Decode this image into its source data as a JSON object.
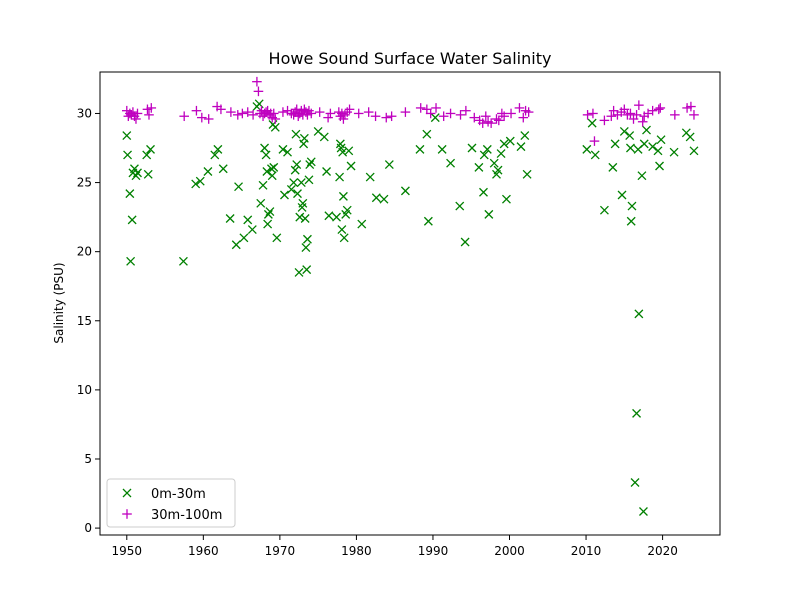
{
  "chart_data": {
    "type": "scatter",
    "title": "Howe Sound Surface Water Salinity",
    "xlabel": "",
    "ylabel": "Salinity (PSU)",
    "xlim": [
      1946.5,
      2027.5
    ],
    "ylim": [
      -0.5,
      33
    ],
    "xticks": [
      1950,
      1960,
      1970,
      1980,
      1990,
      2000,
      2010,
      2020
    ],
    "yticks": [
      0,
      5,
      10,
      15,
      20,
      25,
      30
    ],
    "grid": false,
    "legend_position": "lower-left",
    "series": [
      {
        "name": "0m-30m",
        "marker": "x",
        "color": "#008000",
        "points": [
          [
            1950.0,
            28.4
          ],
          [
            1950.1,
            27.0
          ],
          [
            1950.4,
            24.2
          ],
          [
            1950.5,
            19.3
          ],
          [
            1950.7,
            22.3
          ],
          [
            1950.8,
            25.7
          ],
          [
            1951.0,
            26.0
          ],
          [
            1951.2,
            25.5
          ],
          [
            1951.4,
            25.7
          ],
          [
            1952.6,
            27.0
          ],
          [
            1952.8,
            25.6
          ],
          [
            1953.1,
            27.4
          ],
          [
            1957.4,
            19.3
          ],
          [
            1959.0,
            24.9
          ],
          [
            1959.6,
            25.1
          ],
          [
            1960.6,
            25.8
          ],
          [
            1961.5,
            27.0
          ],
          [
            1961.9,
            27.4
          ],
          [
            1962.6,
            26.0
          ],
          [
            1963.5,
            22.4
          ],
          [
            1964.3,
            20.5
          ],
          [
            1964.6,
            24.7
          ],
          [
            1965.3,
            21.0
          ],
          [
            1965.8,
            22.3
          ],
          [
            1966.4,
            21.6
          ],
          [
            1967.0,
            30.5
          ],
          [
            1967.3,
            30.7
          ],
          [
            1967.5,
            23.5
          ],
          [
            1967.8,
            24.8
          ],
          [
            1968.0,
            27.5
          ],
          [
            1968.2,
            27.0
          ],
          [
            1968.3,
            25.8
          ],
          [
            1968.4,
            22.0
          ],
          [
            1968.5,
            22.7
          ],
          [
            1968.7,
            22.9
          ],
          [
            1968.9,
            26.0
          ],
          [
            1969.0,
            25.5
          ],
          [
            1969.1,
            29.2
          ],
          [
            1969.2,
            26.1
          ],
          [
            1969.4,
            29.0
          ],
          [
            1969.6,
            21.0
          ],
          [
            1970.4,
            27.4
          ],
          [
            1970.6,
            24.1
          ],
          [
            1971.0,
            27.2
          ],
          [
            1971.5,
            24.5
          ],
          [
            1971.8,
            25.0
          ],
          [
            1972.0,
            25.9
          ],
          [
            1972.1,
            28.5
          ],
          [
            1972.2,
            26.3
          ],
          [
            1972.3,
            24.2
          ],
          [
            1972.5,
            18.5
          ],
          [
            1972.6,
            22.5
          ],
          [
            1972.8,
            25.0
          ],
          [
            1972.9,
            23.2
          ],
          [
            1973.0,
            23.5
          ],
          [
            1973.1,
            27.8
          ],
          [
            1973.2,
            28.2
          ],
          [
            1973.3,
            22.4
          ],
          [
            1973.4,
            20.3
          ],
          [
            1973.5,
            18.7
          ],
          [
            1973.6,
            20.9
          ],
          [
            1973.8,
            25.2
          ],
          [
            1973.9,
            26.3
          ],
          [
            1974.1,
            26.5
          ],
          [
            1975.0,
            28.7
          ],
          [
            1975.8,
            28.3
          ],
          [
            1976.1,
            25.8
          ],
          [
            1976.4,
            22.6
          ],
          [
            1977.4,
            22.5
          ],
          [
            1977.8,
            25.4
          ],
          [
            1977.9,
            27.8
          ],
          [
            1978.0,
            27.5
          ],
          [
            1978.1,
            21.6
          ],
          [
            1978.2,
            27.2
          ],
          [
            1978.3,
            24.0
          ],
          [
            1978.4,
            21.0
          ],
          [
            1978.6,
            22.7
          ],
          [
            1978.8,
            23.0
          ],
          [
            1979.0,
            27.3
          ],
          [
            1979.3,
            26.2
          ],
          [
            1980.7,
            22.0
          ],
          [
            1981.8,
            25.4
          ],
          [
            1982.6,
            23.9
          ],
          [
            1983.6,
            23.8
          ],
          [
            1984.3,
            26.3
          ],
          [
            1986.4,
            24.4
          ],
          [
            1988.3,
            27.4
          ],
          [
            1989.2,
            28.5
          ],
          [
            1989.4,
            22.2
          ],
          [
            1990.3,
            29.7
          ],
          [
            1991.2,
            27.4
          ],
          [
            1992.3,
            26.4
          ],
          [
            1993.5,
            23.3
          ],
          [
            1994.2,
            20.7
          ],
          [
            1995.1,
            27.5
          ],
          [
            1996.0,
            26.1
          ],
          [
            1996.6,
            24.3
          ],
          [
            1996.7,
            27.0
          ],
          [
            1997.1,
            27.4
          ],
          [
            1997.3,
            22.7
          ],
          [
            1998.0,
            26.4
          ],
          [
            1998.3,
            25.6
          ],
          [
            1998.5,
            25.9
          ],
          [
            1998.9,
            27.1
          ],
          [
            1999.3,
            27.8
          ],
          [
            1999.6,
            23.8
          ],
          [
            2000.1,
            28.0
          ],
          [
            2001.5,
            27.6
          ],
          [
            2002.0,
            28.4
          ],
          [
            2002.3,
            25.6
          ],
          [
            2010.1,
            27.4
          ],
          [
            2010.8,
            29.3
          ],
          [
            2011.2,
            27.0
          ],
          [
            2012.4,
            23.0
          ],
          [
            2013.5,
            26.1
          ],
          [
            2013.8,
            27.8
          ],
          [
            2014.7,
            24.1
          ],
          [
            2015.0,
            28.7
          ],
          [
            2015.7,
            28.4
          ],
          [
            2015.8,
            27.5
          ],
          [
            2015.9,
            22.2
          ],
          [
            2016.0,
            23.3
          ],
          [
            2016.4,
            3.3
          ],
          [
            2016.6,
            8.3
          ],
          [
            2016.8,
            27.4
          ],
          [
            2016.9,
            15.5
          ],
          [
            2017.3,
            25.5
          ],
          [
            2017.5,
            1.2
          ],
          [
            2017.6,
            27.8
          ],
          [
            2017.9,
            28.8
          ],
          [
            2018.7,
            27.6
          ],
          [
            2019.4,
            27.3
          ],
          [
            2019.6,
            26.2
          ],
          [
            2019.8,
            28.1
          ],
          [
            2021.5,
            27.2
          ],
          [
            2023.1,
            28.6
          ],
          [
            2023.6,
            28.3
          ],
          [
            2024.1,
            27.3
          ]
        ]
      },
      {
        "name": "30m-100m",
        "marker": "+",
        "color": "#bf00bf",
        "points": [
          [
            1950.0,
            30.2
          ],
          [
            1950.2,
            29.8
          ],
          [
            1950.4,
            30.0
          ],
          [
            1950.6,
            29.9
          ],
          [
            1950.8,
            30.1
          ],
          [
            1951.0,
            29.8
          ],
          [
            1951.2,
            29.6
          ],
          [
            1951.4,
            30.0
          ],
          [
            1952.7,
            30.3
          ],
          [
            1952.9,
            29.9
          ],
          [
            1953.2,
            30.4
          ],
          [
            1957.5,
            29.8
          ],
          [
            1959.1,
            30.2
          ],
          [
            1959.8,
            29.7
          ],
          [
            1960.7,
            29.6
          ],
          [
            1961.8,
            30.5
          ],
          [
            1962.3,
            30.3
          ],
          [
            1963.6,
            30.1
          ],
          [
            1964.5,
            29.9
          ],
          [
            1965.1,
            30.0
          ],
          [
            1965.8,
            30.1
          ],
          [
            1966.5,
            29.9
          ],
          [
            1967.0,
            32.3
          ],
          [
            1967.2,
            31.6
          ],
          [
            1967.4,
            30.0
          ],
          [
            1967.6,
            30.2
          ],
          [
            1967.8,
            29.8
          ],
          [
            1968.0,
            30.0
          ],
          [
            1968.2,
            30.1
          ],
          [
            1968.4,
            30.2
          ],
          [
            1968.6,
            29.9
          ],
          [
            1968.8,
            30.0
          ],
          [
            1969.0,
            29.7
          ],
          [
            1969.2,
            30.0
          ],
          [
            1969.4,
            29.6
          ],
          [
            1970.4,
            30.1
          ],
          [
            1971.0,
            30.2
          ],
          [
            1971.5,
            30.0
          ],
          [
            1971.8,
            29.9
          ],
          [
            1972.0,
            30.1
          ],
          [
            1972.2,
            30.3
          ],
          [
            1972.4,
            29.8
          ],
          [
            1972.6,
            30.0
          ],
          [
            1972.8,
            30.2
          ],
          [
            1973.0,
            29.9
          ],
          [
            1973.2,
            30.3
          ],
          [
            1973.4,
            30.1
          ],
          [
            1973.6,
            29.9
          ],
          [
            1973.8,
            30.2
          ],
          [
            1974.1,
            30.0
          ],
          [
            1975.2,
            30.1
          ],
          [
            1976.3,
            29.7
          ],
          [
            1976.6,
            30.0
          ],
          [
            1977.7,
            30.1
          ],
          [
            1977.9,
            29.8
          ],
          [
            1978.1,
            30.0
          ],
          [
            1978.3,
            29.6
          ],
          [
            1978.5,
            29.9
          ],
          [
            1978.8,
            30.1
          ],
          [
            1979.1,
            30.3
          ],
          [
            1980.3,
            30.0
          ],
          [
            1981.6,
            30.1
          ],
          [
            1982.5,
            29.8
          ],
          [
            1983.9,
            29.7
          ],
          [
            1984.6,
            29.8
          ],
          [
            1986.4,
            30.1
          ],
          [
            1988.4,
            30.4
          ],
          [
            1989.2,
            30.3
          ],
          [
            1989.7,
            30.0
          ],
          [
            1990.4,
            30.4
          ],
          [
            1991.4,
            29.8
          ],
          [
            1992.3,
            30.0
          ],
          [
            1993.6,
            29.9
          ],
          [
            1994.3,
            30.2
          ],
          [
            1995.4,
            29.7
          ],
          [
            1996.1,
            29.5
          ],
          [
            1996.5,
            29.3
          ],
          [
            1996.9,
            29.8
          ],
          [
            1997.2,
            29.4
          ],
          [
            1997.6,
            29.3
          ],
          [
            1998.3,
            29.6
          ],
          [
            1998.6,
            29.5
          ],
          [
            1999.0,
            30.0
          ],
          [
            1999.3,
            29.8
          ],
          [
            2000.2,
            30.0
          ],
          [
            2001.3,
            30.4
          ],
          [
            2001.8,
            29.7
          ],
          [
            2002.1,
            30.2
          ],
          [
            2002.5,
            30.1
          ],
          [
            2010.2,
            29.9
          ],
          [
            2010.9,
            30.0
          ],
          [
            2011.1,
            28.0
          ],
          [
            2012.4,
            29.5
          ],
          [
            2013.3,
            29.8
          ],
          [
            2013.6,
            30.2
          ],
          [
            2014.1,
            29.9
          ],
          [
            2014.6,
            30.1
          ],
          [
            2015.0,
            30.3
          ],
          [
            2015.4,
            29.9
          ],
          [
            2015.8,
            30.0
          ],
          [
            2016.2,
            29.6
          ],
          [
            2016.6,
            29.9
          ],
          [
            2016.9,
            30.6
          ],
          [
            2017.4,
            29.4
          ],
          [
            2017.6,
            29.8
          ],
          [
            2018.1,
            30.0
          ],
          [
            2018.7,
            30.2
          ],
          [
            2019.5,
            30.3
          ],
          [
            2019.7,
            30.4
          ],
          [
            2021.6,
            29.9
          ],
          [
            2023.2,
            30.4
          ],
          [
            2023.7,
            30.5
          ],
          [
            2024.1,
            29.9
          ]
        ]
      }
    ]
  }
}
